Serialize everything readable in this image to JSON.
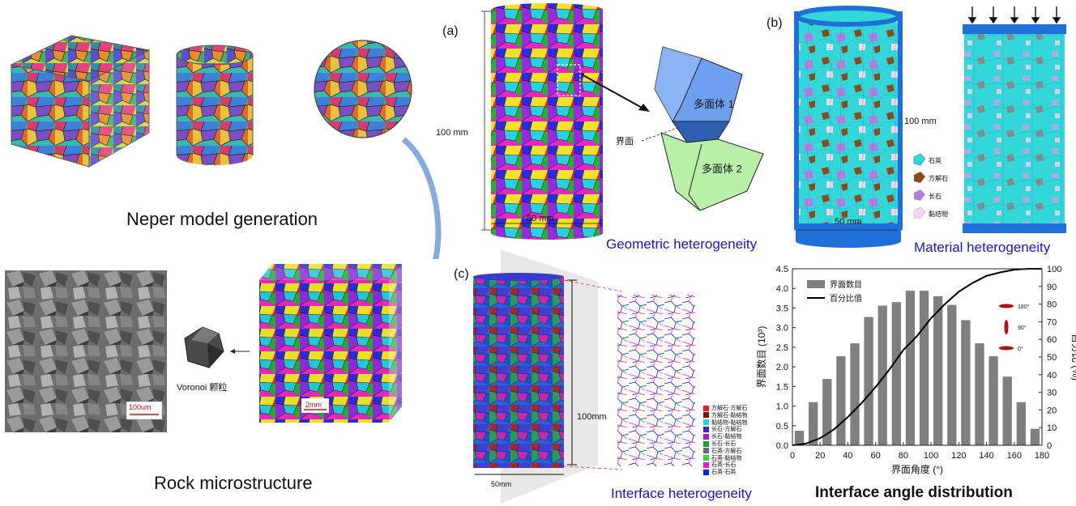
{
  "left": {
    "neper_caption": "Neper model generation",
    "rock_caption": "Rock microstructure",
    "voronoi_label": "Voronoi 颗粒",
    "sem_scale": "100um",
    "block_scale": "2mm"
  },
  "panel_a": {
    "label": "(a)",
    "height_label": "100 mm",
    "width_label": "50 mm",
    "poly1": "多面体 1",
    "poly2": "多面体 2",
    "interface": "界面",
    "caption": "Geometric heterogeneity"
  },
  "panel_b": {
    "label": "(b)",
    "height_label": "100 mm",
    "width_label": "50 mm",
    "legend": [
      "石英",
      "方解石",
      "长石",
      "黏结物"
    ],
    "colors": {
      "quartz": "#33d6d9",
      "calcite": "#8a4a1a",
      "feldspar": "#b57be0",
      "cement": "#f0d8ee",
      "platen": "#1f6fd8"
    },
    "caption": "Material heterogeneity"
  },
  "panel_c": {
    "label": "(c)",
    "height_label": "100mm",
    "width_label": "50mm",
    "legend": [
      "方解石-方解石",
      "方解石-黏结物",
      "黏结物-黏结物",
      "长石-方解石",
      "长石-黏结物",
      "长石-长石",
      "石英-方解石",
      "石英-黏结物",
      "石英-长石",
      "石英-石英"
    ],
    "legend_colors": [
      "#e81c1c",
      "#7a1010",
      "#20d4e8",
      "#3a1fd6",
      "#a21fd6",
      "#1e9e2a",
      "#6a6a6a",
      "#38d838",
      "#e820c8",
      "#1a1aee"
    ],
    "caption": "Interface heterogeneity"
  },
  "chart_data": {
    "type": "bar",
    "title": "Interface angle distribution",
    "xlabel": "界面角度 (°)",
    "ylabel": "界面数目 (10³)",
    "y2label": "百分比 (%)",
    "xlim": [
      0,
      180
    ],
    "ylim": [
      0,
      4.5
    ],
    "y2lim": [
      0,
      100
    ],
    "x_ticks": [
      "0",
      "20",
      "40",
      "60",
      "80",
      "100",
      "120",
      "140",
      "160",
      "180"
    ],
    "y_ticks": [
      "0.0",
      "0.5",
      "1.0",
      "1.5",
      "2.0",
      "2.5",
      "3.0",
      "3.5",
      "4.0",
      "4.5"
    ],
    "y2_ticks": [
      "0",
      "10",
      "20",
      "30",
      "40",
      "50",
      "60",
      "70",
      "80",
      "90",
      "100"
    ],
    "x": [
      5,
      15,
      25,
      35,
      45,
      55,
      65,
      75,
      85,
      95,
      105,
      115,
      125,
      135,
      145,
      155,
      165,
      175
    ],
    "values": [
      0.37,
      1.1,
      1.69,
      2.27,
      2.6,
      3.27,
      3.56,
      3.65,
      3.94,
      3.94,
      3.8,
      3.58,
      3.19,
      2.6,
      2.27,
      1.75,
      1.1,
      0.42
    ],
    "series": [
      {
        "name": "界面数目",
        "type": "bar",
        "color": "#7f7f7f"
      },
      {
        "name": "百分比值",
        "type": "line",
        "color": "#000000",
        "x": [
          0,
          10,
          20,
          30,
          40,
          50,
          60,
          70,
          80,
          90,
          100,
          110,
          120,
          130,
          140,
          150,
          160,
          170,
          180
        ],
        "values": [
          0,
          1,
          4,
          9,
          16,
          24,
          33,
          43,
          54,
          62,
          72,
          80,
          87,
          92,
          96,
          98,
          99.5,
          100,
          100
        ]
      }
    ],
    "inset_labels": [
      "180°",
      "90°",
      "0°"
    ],
    "grid": false,
    "legend_position": "top-left"
  }
}
